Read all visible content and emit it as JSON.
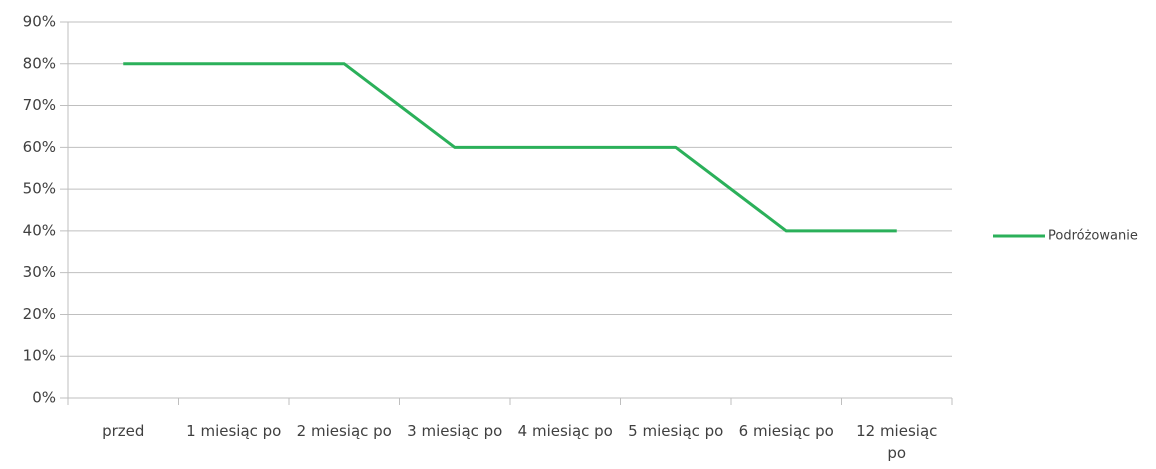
{
  "chart_data": {
    "type": "line",
    "categories": [
      "przed",
      "1 miesiąc po",
      "2 miesiąc po",
      "3 miesiąc po",
      "4 miesiąc po",
      "5 miesiąc po",
      "6 miesiąc po",
      "12 miesiąc po"
    ],
    "series": [
      {
        "name": "Podróżowanie",
        "color": "#2bb05a",
        "values": [
          80,
          80,
          80,
          60,
          60,
          60,
          40,
          40
        ]
      }
    ],
    "ylim": [
      0,
      90
    ],
    "yticks": [
      {
        "value": 0,
        "label": "0%"
      },
      {
        "value": 10,
        "label": "10%"
      },
      {
        "value": 20,
        "label": "20%"
      },
      {
        "value": 30,
        "label": "30%"
      },
      {
        "value": 40,
        "label": "40%"
      },
      {
        "value": 50,
        "label": "50%"
      },
      {
        "value": 60,
        "label": "60%"
      },
      {
        "value": 70,
        "label": "70%"
      },
      {
        "value": 80,
        "label": "80%"
      },
      {
        "value": 90,
        "label": "90%"
      }
    ],
    "grid": true,
    "legend": "right"
  }
}
